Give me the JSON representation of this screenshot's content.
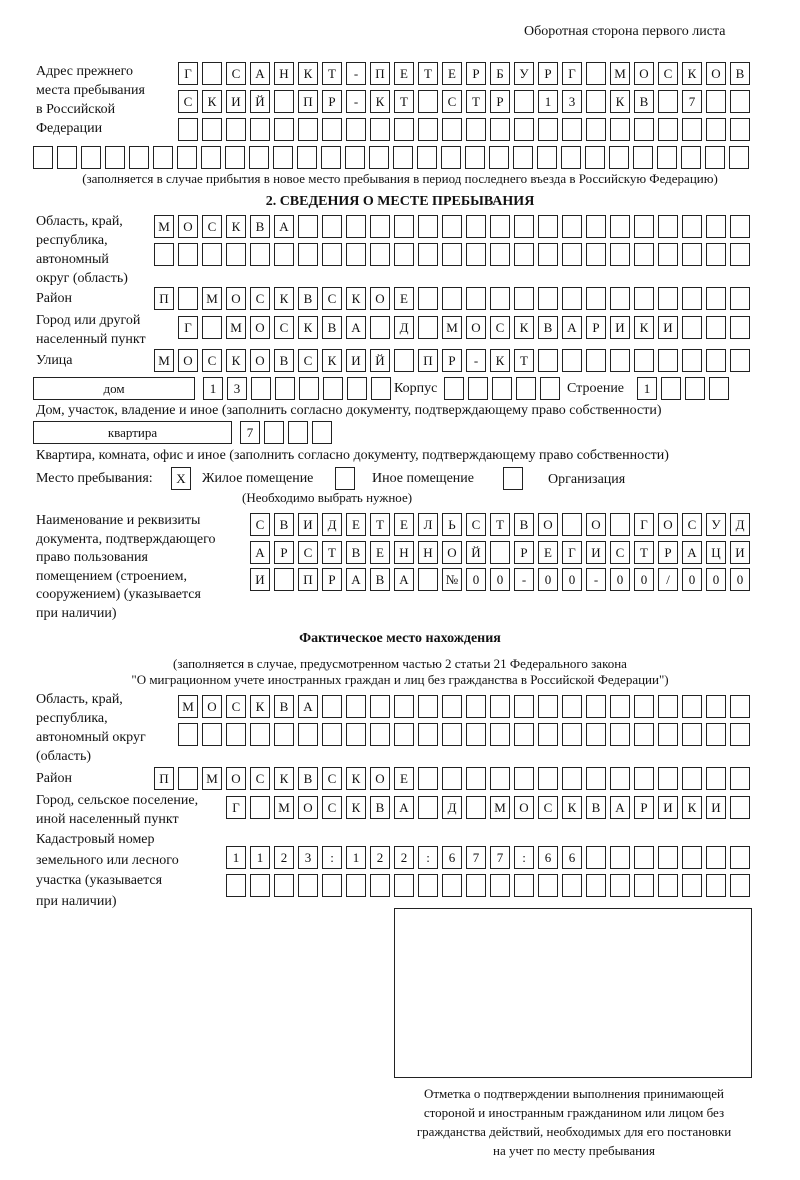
{
  "header": "Оборотная сторона первого листа",
  "prev_address": {
    "label": "Адрес прежнего\nместа пребывания\nв Российской\nФедерации",
    "rows": [
      [
        "Г",
        "",
        "С",
        "А",
        "Н",
        "К",
        "Т",
        "-",
        "П",
        "Е",
        "Т",
        "Е",
        "Р",
        "Б",
        "У",
        "Р",
        "Г",
        "",
        "М",
        "О",
        "С",
        "К",
        "О",
        "В"
      ],
      [
        "С",
        "К",
        "И",
        "Й",
        "",
        "П",
        "Р",
        "-",
        "К",
        "Т",
        "",
        "С",
        "Т",
        "Р",
        "",
        "1",
        "3",
        "",
        "К",
        "В",
        "",
        "7",
        "",
        ""
      ],
      [
        "",
        "",
        "",
        "",
        "",
        "",
        "",
        "",
        "",
        "",
        "",
        "",
        "",
        "",
        "",
        "",
        "",
        "",
        "",
        "",
        "",
        "",
        "",
        ""
      ],
      [
        "",
        "",
        "",
        "",
        "",
        "",
        "",
        "",
        "",
        "",
        "",
        "",
        "",
        "",
        "",
        "",
        "",
        "",
        "",
        "",
        "",
        "",
        "",
        "",
        "",
        "",
        "",
        "",
        "",
        ""
      ]
    ],
    "note": "(заполняется в случае прибытия в новое место пребывания в период последнего въезда в Российскую Федерацию)"
  },
  "section2": {
    "title": "2. СВЕДЕНИЯ О МЕСТЕ ПРЕБЫВАНИЯ",
    "region_label": "Область, край,\nреспублика,\nавтономный\nокруг (область)",
    "region_rows": [
      [
        "М",
        "О",
        "С",
        "К",
        "В",
        "А",
        "",
        "",
        "",
        "",
        "",
        "",
        "",
        "",
        "",
        "",
        "",
        "",
        "",
        "",
        "",
        "",
        "",
        "",
        ""
      ],
      [
        "",
        "",
        "",
        "",
        "",
        "",
        "",
        "",
        "",
        "",
        "",
        "",
        "",
        "",
        "",
        "",
        "",
        "",
        "",
        "",
        "",
        "",
        "",
        "",
        ""
      ]
    ],
    "district_label": "Район",
    "district_row": [
      "П",
      "",
      "М",
      "О",
      "С",
      "К",
      "В",
      "С",
      "К",
      "О",
      "Е",
      "",
      "",
      "",
      "",
      "",
      "",
      "",
      "",
      "",
      "",
      "",
      "",
      "",
      ""
    ],
    "city_label": "Город или другой\nнаселенный пункт",
    "city_row": [
      "Г",
      "",
      "М",
      "О",
      "С",
      "К",
      "В",
      "А",
      "",
      "Д",
      "",
      "М",
      "О",
      "С",
      "К",
      "В",
      "А",
      "Р",
      "И",
      "К",
      "И",
      "",
      "",
      ""
    ],
    "street_label": "Улица",
    "street_row": [
      "М",
      "О",
      "С",
      "К",
      "О",
      "В",
      "С",
      "К",
      "И",
      "Й",
      "",
      "П",
      "Р",
      "-",
      "К",
      "Т",
      "",
      "",
      "",
      "",
      "",
      "",
      "",
      "",
      ""
    ],
    "house_type": "дом",
    "house_cells": [
      "1",
      "3",
      "",
      "",
      "",
      "",
      "",
      ""
    ],
    "korpus_label": "Корпус",
    "korpus_cells": [
      "",
      "",
      "",
      "",
      ""
    ],
    "building_label": "Строение",
    "building_cells": [
      "1",
      "",
      "",
      ""
    ],
    "house_note": "Дом, участок, владение и иное (заполнить согласно документу, подтверждающему право собственности)",
    "flat_type": "квартира",
    "flat_cells": [
      "7",
      "",
      "",
      ""
    ],
    "flat_note": "Квартира, комната, офис и иное (заполнить согласно документу, подтверждающему право собственности)",
    "place_label": "Место пребывания:",
    "place_options": [
      {
        "label": "Жилое помещение",
        "mark": "X"
      },
      {
        "label": "Иное помещение",
        "mark": ""
      },
      {
        "label": "Организация",
        "mark": ""
      }
    ],
    "place_note": "(Необходимо выбрать нужное)",
    "doc_label": "Наименование и реквизиты\nдокумента, подтверждающего\nправо пользования\nпомещением (строением,\nсооружением) (указывается\nпри наличии)",
    "doc_rows": [
      [
        "С",
        "В",
        "И",
        "Д",
        "Е",
        "Т",
        "Е",
        "Л",
        "Ь",
        "С",
        "Т",
        "В",
        "О",
        "",
        "О",
        "",
        "Г",
        "О",
        "С",
        "У",
        "Д"
      ],
      [
        "А",
        "Р",
        "С",
        "Т",
        "В",
        "Е",
        "Н",
        "Н",
        "О",
        "Й",
        "",
        "Р",
        "Е",
        "Г",
        "И",
        "С",
        "Т",
        "Р",
        "А",
        "Ц",
        "И"
      ],
      [
        "И",
        "",
        "П",
        "Р",
        "А",
        "В",
        "А",
        "",
        "№",
        "0",
        "0",
        "-",
        "0",
        "0",
        "-",
        "0",
        "0",
        "/",
        "0",
        "0",
        "0"
      ]
    ]
  },
  "actual": {
    "title": "Фактическое место нахождения",
    "note1": "(заполняется в случае, предусмотренном частью 2 статьи 21 Федерального закона",
    "note2": "\"О миграционном учете иностранных граждан и лиц без гражданства в Российской Федерации\")",
    "region_label": "Область, край,\nреспублика,\nавтономный округ\n(область)",
    "region_rows": [
      [
        "М",
        "О",
        "С",
        "К",
        "В",
        "А",
        "",
        "",
        "",
        "",
        "",
        "",
        "",
        "",
        "",
        "",
        "",
        "",
        "",
        "",
        "",
        "",
        "",
        ""
      ],
      [
        "",
        "",
        "",
        "",
        "",
        "",
        "",
        "",
        "",
        "",
        "",
        "",
        "",
        "",
        "",
        "",
        "",
        "",
        "",
        "",
        "",
        "",
        "",
        ""
      ]
    ],
    "district_label": "Район",
    "district_row": [
      "П",
      "",
      "М",
      "О",
      "С",
      "К",
      "В",
      "С",
      "К",
      "О",
      "Е",
      "",
      "",
      "",
      "",
      "",
      "",
      "",
      "",
      "",
      "",
      "",
      "",
      "",
      ""
    ],
    "city_label": "Город, сельское поселение,\nиной населенный пункт",
    "city_row": [
      "Г",
      "",
      "М",
      "О",
      "С",
      "К",
      "В",
      "А",
      "",
      "Д",
      "",
      "М",
      "О",
      "С",
      "К",
      "В",
      "А",
      "Р",
      "И",
      "К",
      "И",
      ""
    ],
    "cadastre_label": "Кадастровый номер\nземельного или лесного\nучастка (указывается\nпри наличии)",
    "cadastre_rows": [
      [
        "1",
        "1",
        "2",
        "3",
        ":",
        "1",
        "2",
        "2",
        ":",
        "6",
        "7",
        "7",
        ":",
        "6",
        "6",
        "",
        "",
        "",
        "",
        "",
        "",
        ""
      ],
      [
        "",
        "",
        "",
        "",
        "",
        "",
        "",
        "",
        "",
        "",
        "",
        "",
        "",
        "",
        "",
        "",
        "",
        "",
        "",
        "",
        "",
        ""
      ]
    ]
  },
  "stamp_caption": "Отметка о подтверждении выполнения принимающей\nстороной и иностранным гражданином или лицом без\nгражданства действий, необходимых для его постановки\nна учет по месту пребывания"
}
